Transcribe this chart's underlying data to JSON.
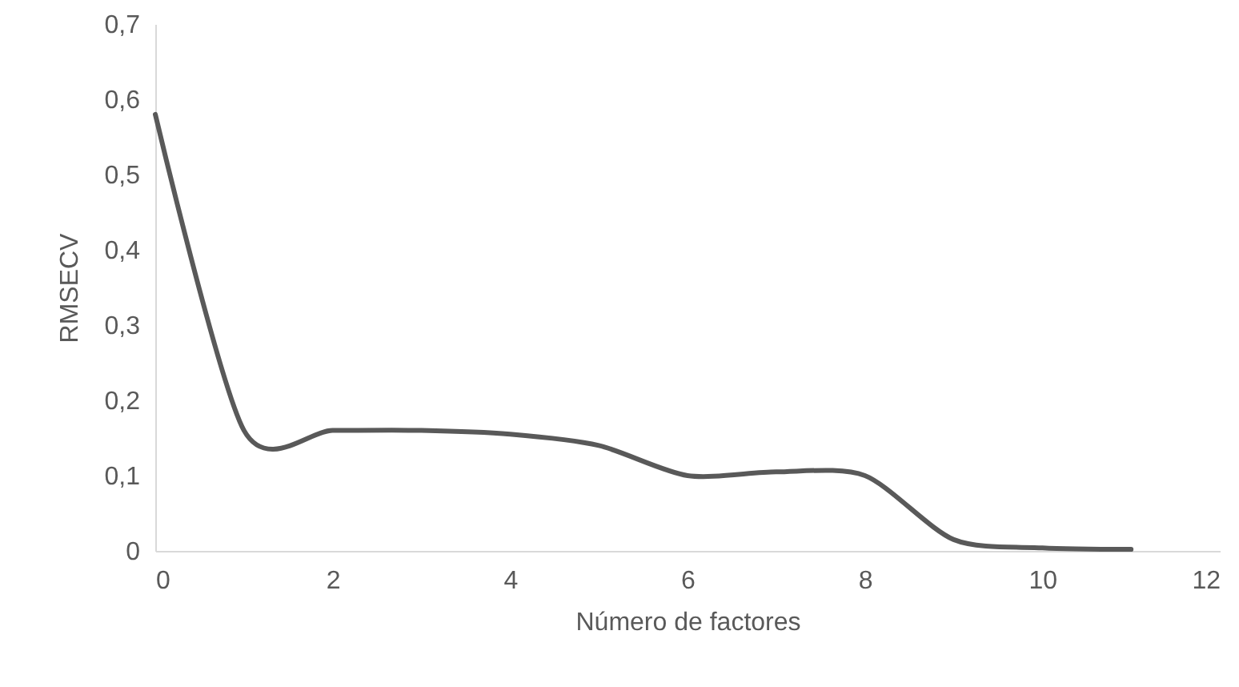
{
  "chart_data": {
    "type": "line",
    "xlabel": "Número de factores",
    "ylabel": "RMSECV",
    "x": [
      0,
      1,
      2,
      3,
      4,
      5,
      6,
      7,
      8,
      9,
      10,
      11
    ],
    "series": [
      {
        "color": "#595959",
        "values": [
          0.58,
          0.16,
          0.16,
          0.16,
          0.155,
          0.14,
          0.1,
          0.105,
          0.1,
          0.015,
          0.004,
          0.002
        ]
      }
    ],
    "xlim": [
      0,
      12
    ],
    "xticks": [
      0,
      2,
      4,
      6,
      8,
      10,
      12
    ],
    "ylim": [
      0,
      0.7
    ],
    "yticks": [
      {
        "value": 0,
        "label": "0"
      },
      {
        "value": 0.1,
        "label": "0,1"
      },
      {
        "value": 0.2,
        "label": "0,2"
      },
      {
        "value": 0.3,
        "label": "0,3"
      },
      {
        "value": 0.4,
        "label": "0,4"
      },
      {
        "value": 0.5,
        "label": "0,5"
      },
      {
        "value": 0.6,
        "label": "0,6"
      },
      {
        "value": 0.7,
        "label": "0,7"
      }
    ],
    "grid": false,
    "marker": "none",
    "line_style": "solid"
  }
}
